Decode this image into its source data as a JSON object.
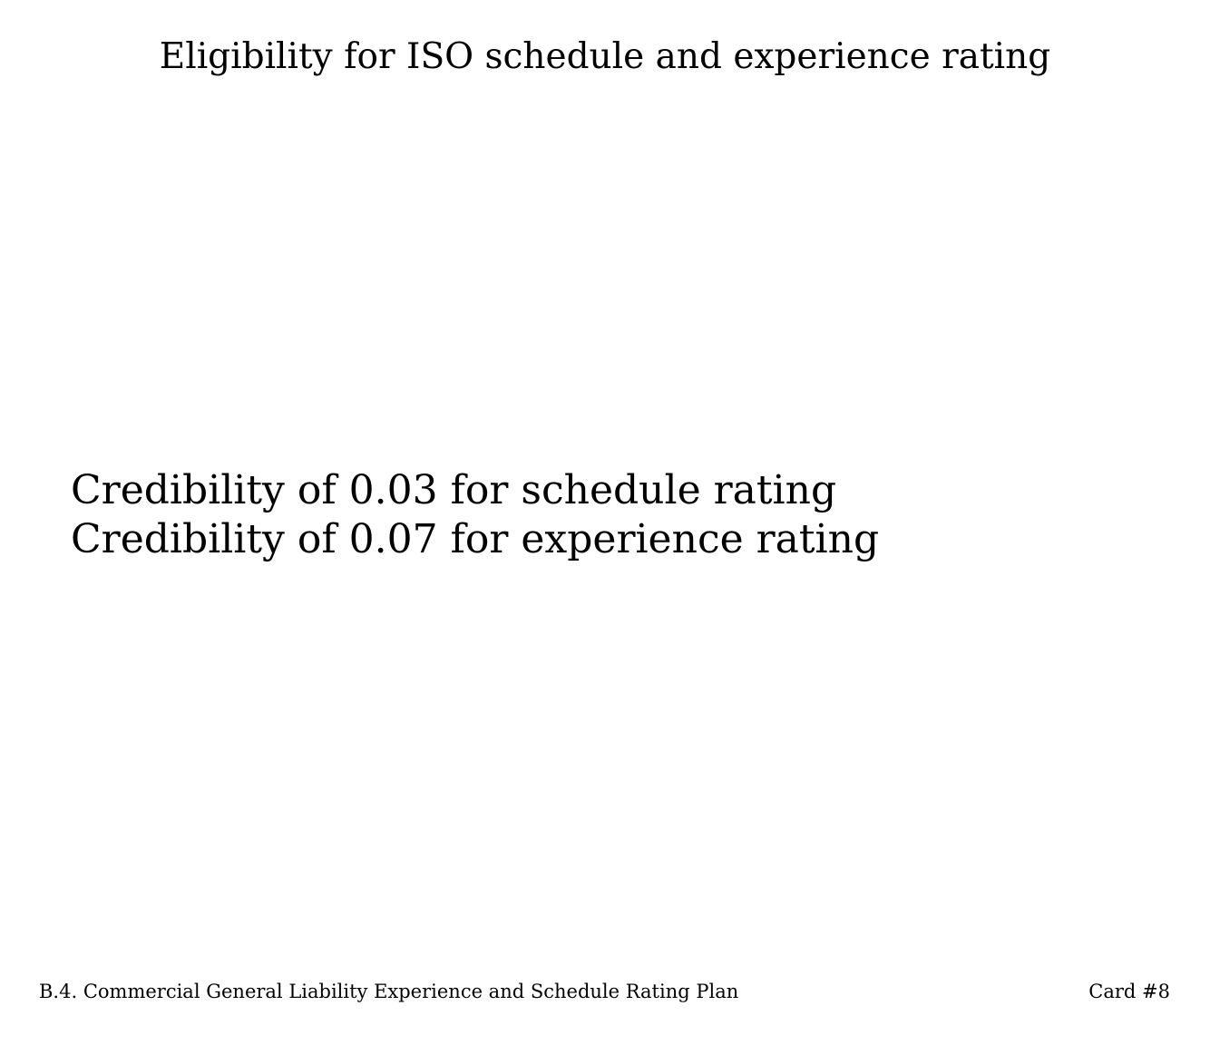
{
  "card": {
    "title": "Eligibility for ISO schedule and experience rating",
    "lines": [
      "Credibility of 0.03 for schedule rating",
      "Credibility of 0.07 for experience rating"
    ]
  },
  "footer": {
    "section": "B.4. Commercial General Liability Experience and Schedule Rating Plan",
    "card_number": "Card #8"
  }
}
